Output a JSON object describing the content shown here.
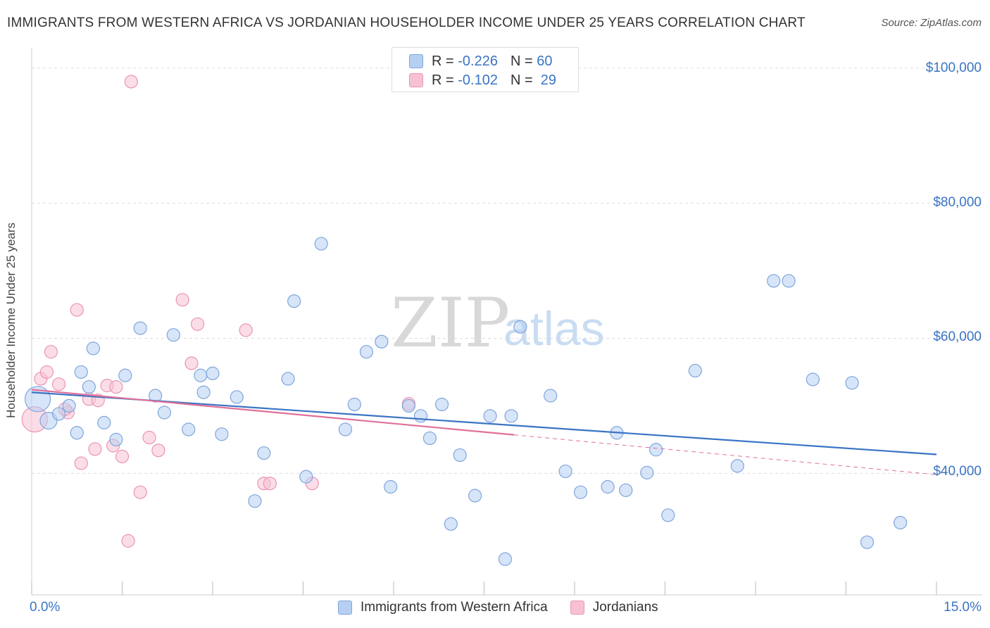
{
  "header": {
    "title": "IMMIGRANTS FROM WESTERN AFRICA VS JORDANIAN HOUSEHOLDER INCOME UNDER 25 YEARS CORRELATION CHART",
    "source": "Source: ZipAtlas.com"
  },
  "watermark": {
    "zip": "ZIP",
    "atlas": "atlas"
  },
  "legend_top": {
    "blue": {
      "r_label": "R =",
      "r_value": "-0.226",
      "n_label": "N =",
      "n_value": "60"
    },
    "pink": {
      "r_label": "R =",
      "r_value": "-0.102",
      "n_label": "N =",
      "n_value": "29"
    }
  },
  "colors": {
    "blue_fill": "#b7cff2",
    "blue_stroke": "#7fa6dc",
    "blue_line": "#3a74c4",
    "pink_fill": "#f7c1d3",
    "pink_stroke": "#ea95b2",
    "pink_line": "#e0709a",
    "grid": "#dddddd",
    "tick_text": "#3a74c4"
  },
  "chart_data": {
    "type": "scatter",
    "title": "IMMIGRANTS FROM WESTERN AFRICA VS JORDANIAN HOUSEHOLDER INCOME UNDER 25 YEARS CORRELATION CHART",
    "xlabel": "",
    "ylabel": "Householder Income Under 25 years",
    "xlim": [
      0,
      15
    ],
    "ylim": [
      22000,
      103000
    ],
    "x_tick_labels": [
      "0.0%",
      "15.0%"
    ],
    "y_ticks": [
      40000,
      60000,
      80000,
      100000
    ],
    "y_tick_labels": [
      "$40,000",
      "$60,000",
      "$80,000",
      "$100,000"
    ],
    "grid": true,
    "legend_position": "bottom",
    "series": [
      {
        "name": "Immigrants from Western Africa",
        "color": "blue",
        "points": [
          [
            0.1,
            51000
          ],
          [
            0.28,
            47800
          ],
          [
            0.45,
            48800
          ],
          [
            0.62,
            50000
          ],
          [
            0.75,
            46000
          ],
          [
            0.82,
            55000
          ],
          [
            0.95,
            52800
          ],
          [
            1.02,
            58500
          ],
          [
            1.2,
            47500
          ],
          [
            1.4,
            45000
          ],
          [
            1.55,
            54500
          ],
          [
            1.8,
            61500
          ],
          [
            2.05,
            51500
          ],
          [
            2.2,
            49000
          ],
          [
            2.35,
            60500
          ],
          [
            2.6,
            46500
          ],
          [
            2.8,
            54500
          ],
          [
            3.0,
            54800
          ],
          [
            3.15,
            45800
          ],
          [
            3.4,
            51300
          ],
          [
            3.85,
            43000
          ],
          [
            4.25,
            54000
          ],
          [
            4.35,
            65500
          ],
          [
            4.55,
            39500
          ],
          [
            4.8,
            74000
          ],
          [
            5.2,
            46500
          ],
          [
            5.35,
            50200
          ],
          [
            5.55,
            58000
          ],
          [
            5.8,
            59500
          ],
          [
            5.95,
            38000
          ],
          [
            6.25,
            50000
          ],
          [
            6.45,
            48500
          ],
          [
            6.6,
            45200
          ],
          [
            6.8,
            50200
          ],
          [
            6.95,
            32500
          ],
          [
            7.1,
            42700
          ],
          [
            7.35,
            36700
          ],
          [
            7.6,
            48500
          ],
          [
            7.85,
            27300
          ],
          [
            7.95,
            48500
          ],
          [
            8.1,
            61700
          ],
          [
            8.6,
            51500
          ],
          [
            8.85,
            40300
          ],
          [
            9.1,
            37200
          ],
          [
            9.55,
            38000
          ],
          [
            9.7,
            46000
          ],
          [
            9.85,
            37500
          ],
          [
            10.2,
            40100
          ],
          [
            10.35,
            43500
          ],
          [
            10.55,
            33800
          ],
          [
            11.0,
            55200
          ],
          [
            11.7,
            41100
          ],
          [
            12.3,
            68500
          ],
          [
            12.55,
            68500
          ],
          [
            12.95,
            53900
          ],
          [
            13.6,
            53400
          ],
          [
            13.85,
            29800
          ],
          [
            14.4,
            32700
          ],
          [
            3.7,
            35900
          ],
          [
            2.85,
            52000
          ]
        ]
      },
      {
        "name": "Jordanians",
        "color": "pink",
        "points": [
          [
            0.05,
            48000
          ],
          [
            0.15,
            54000
          ],
          [
            0.25,
            55000
          ],
          [
            0.32,
            58000
          ],
          [
            0.45,
            53200
          ],
          [
            0.6,
            49000
          ],
          [
            0.75,
            64200
          ],
          [
            0.82,
            41500
          ],
          [
            0.95,
            51000
          ],
          [
            1.1,
            50800
          ],
          [
            1.25,
            53000
          ],
          [
            1.35,
            44100
          ],
          [
            1.5,
            42500
          ],
          [
            1.6,
            30000
          ],
          [
            1.65,
            98000
          ],
          [
            1.8,
            37200
          ],
          [
            1.95,
            45300
          ],
          [
            2.1,
            43400
          ],
          [
            2.5,
            65700
          ],
          [
            2.65,
            56300
          ],
          [
            2.75,
            62100
          ],
          [
            3.55,
            61200
          ],
          [
            3.85,
            38500
          ],
          [
            3.95,
            38500
          ],
          [
            4.65,
            38500
          ],
          [
            6.25,
            50300
          ],
          [
            1.05,
            43600
          ],
          [
            0.55,
            49500
          ],
          [
            1.4,
            52800
          ]
        ]
      }
    ],
    "trend_lines": [
      {
        "series": "Immigrants from Western Africa",
        "x": [
          0,
          15
        ],
        "y": [
          52000,
          42800
        ],
        "style": "solid"
      },
      {
        "series": "Jordanians",
        "x": [
          0,
          8
        ],
        "y": [
          52400,
          45700
        ],
        "style": "solid"
      },
      {
        "series": "Jordanians",
        "x": [
          8,
          15
        ],
        "y": [
          45700,
          39800
        ],
        "style": "dashed"
      }
    ]
  }
}
